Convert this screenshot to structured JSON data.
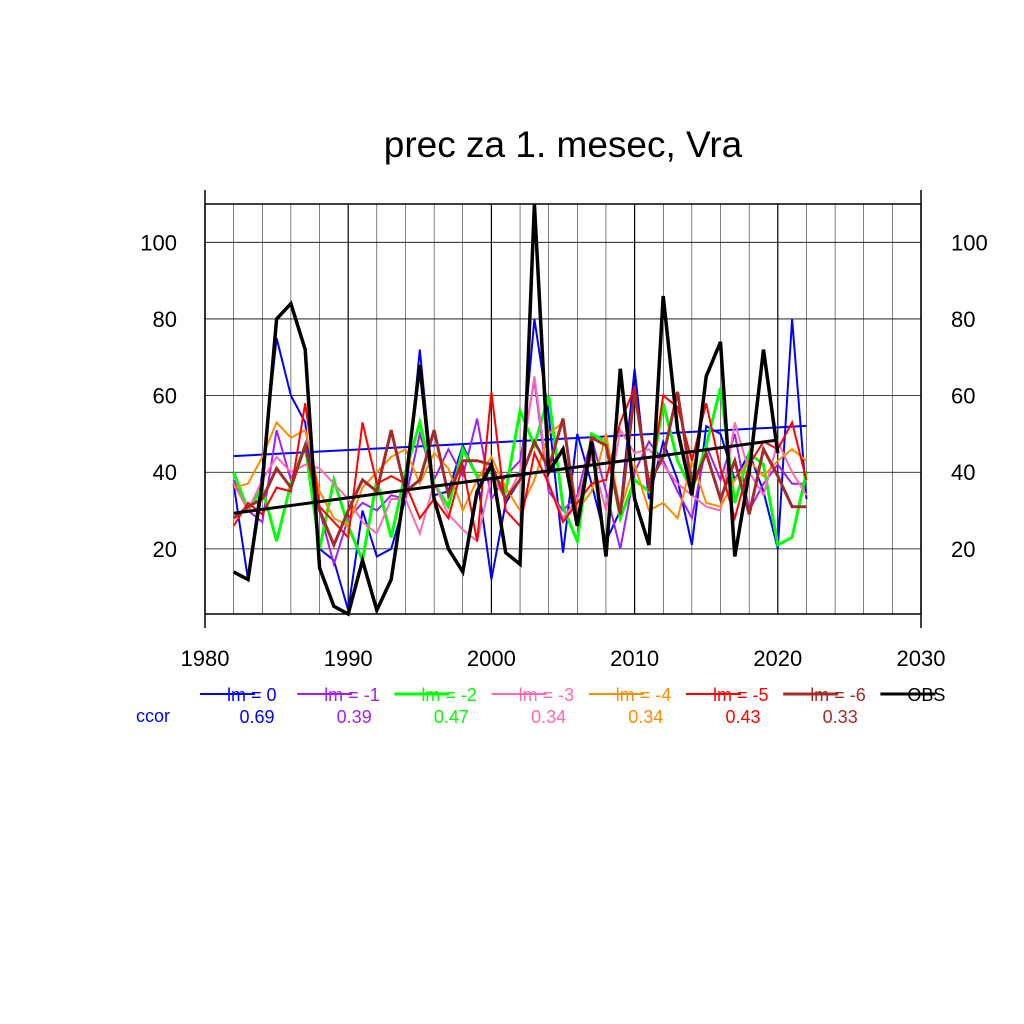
{
  "chart_data": {
    "type": "line",
    "title": "prec za 1. mesec, Vra",
    "xlim": [
      1980,
      2030
    ],
    "ylim": [
      3,
      110
    ],
    "x_ticks": [
      "1980",
      "1990",
      "2000",
      "2010",
      "2020",
      "2030"
    ],
    "y_ticks": [
      "20",
      "40",
      "60",
      "80",
      "100"
    ],
    "y_ticks_right": [
      "20",
      "40",
      "60",
      "80",
      "100"
    ],
    "grid": true,
    "legend_position": "bottom",
    "ccor_label": "ccor",
    "x": [
      1982,
      1983,
      1984,
      1985,
      1986,
      1987,
      1988,
      1989,
      1990,
      1991,
      1992,
      1993,
      1994,
      1995,
      1996,
      1997,
      1998,
      1999,
      2000,
      2001,
      2002,
      2003,
      2004,
      2005,
      2006,
      2007,
      2008,
      2009,
      2010,
      2011,
      2012,
      2013,
      2014,
      2015,
      2016,
      2017,
      2018,
      2019,
      2020,
      2021,
      2022
    ],
    "series": [
      {
        "name": "lm = 0",
        "color": "#0000ff",
        "width": 2,
        "ccor": "0.69",
        "values": [
          37,
          12,
          40,
          75,
          60,
          53,
          20,
          17,
          4,
          30,
          18,
          20,
          33,
          72,
          34,
          35,
          47,
          39,
          12,
          32,
          38,
          80,
          55,
          19,
          50,
          37,
          22,
          30,
          67,
          33,
          48,
          38,
          21,
          52,
          50,
          38,
          45,
          35,
          20,
          80,
          33
        ],
        "trend": [
          [
            1982,
            44.2
          ],
          [
            2022,
            52.1
          ]
        ]
      },
      {
        "name": "lm = -1",
        "color": "#a020f0",
        "width": 2,
        "ccor": "0.39",
        "values": [
          38,
          30,
          27,
          51,
          38,
          47,
          30,
          16,
          28,
          32,
          30,
          34,
          33,
          50,
          38,
          46,
          39,
          54,
          33,
          39,
          43,
          64,
          35,
          30,
          34,
          49,
          35,
          20,
          40,
          48,
          43,
          35,
          28,
          47,
          38,
          50,
          30,
          37,
          42,
          37,
          37
        ]
      },
      {
        "name": "lm = -2",
        "color": "#00ff00",
        "width": 3,
        "ccor": "0.47",
        "values": [
          40,
          30,
          36,
          22,
          37,
          47,
          20,
          38,
          26,
          17,
          38,
          23,
          40,
          53,
          37,
          31,
          46,
          39,
          40,
          35,
          56,
          47,
          60,
          31,
          22,
          50,
          48,
          28,
          38,
          35,
          58,
          43,
          35,
          47,
          62,
          32,
          45,
          42,
          21,
          23,
          40
        ]
      },
      {
        "name": "lm = -3",
        "color": "#ff69b4",
        "width": 2,
        "ccor": "0.34",
        "values": [
          37,
          30,
          38,
          44,
          40,
          42,
          41,
          37,
          33,
          27,
          24,
          33,
          33,
          24,
          37,
          29,
          25,
          22,
          39,
          33,
          40,
          65,
          37,
          28,
          33,
          44,
          30,
          51,
          45,
          46,
          42,
          37,
          34,
          31,
          30,
          53,
          40,
          34,
          48,
          40,
          34
        ]
      },
      {
        "name": "lm = -4",
        "color": "#ff8c00",
        "width": 2,
        "ccor": "0.34",
        "values": [
          36,
          37,
          44,
          53,
          49,
          51,
          35,
          28,
          26,
          36,
          40,
          44,
          46,
          37,
          45,
          41,
          30,
          38,
          44,
          36,
          30,
          38,
          50,
          53,
          30,
          35,
          50,
          30,
          42,
          30,
          32,
          28,
          43,
          32,
          31,
          38,
          43,
          39,
          43,
          46,
          43
        ]
      },
      {
        "name": "lm = -5",
        "color": "#ff0000",
        "width": 2,
        "ccor": "0.43",
        "values": [
          26,
          32,
          29,
          36,
          35,
          58,
          31,
          27,
          23,
          53,
          37,
          39,
          37,
          28,
          33,
          28,
          42,
          22,
          61,
          30,
          26,
          45,
          37,
          27,
          32,
          37,
          38,
          53,
          62,
          35,
          60,
          57,
          43,
          58,
          41,
          28,
          42,
          48,
          46,
          53,
          38
        ]
      },
      {
        "name": "lm = -6",
        "color": "#a52a2a",
        "width": 3,
        "ccor": "0.33",
        "values": [
          28,
          31,
          33,
          41,
          36,
          47,
          30,
          21,
          30,
          38,
          35,
          51,
          35,
          38,
          51,
          34,
          43,
          43,
          42,
          33,
          38,
          48,
          41,
          54,
          27,
          49,
          47,
          29,
          61,
          37,
          44,
          61,
          36,
          45,
          33,
          43,
          29,
          46,
          39,
          31,
          31
        ]
      },
      {
        "name": "OBS",
        "color": "#000000",
        "width": 3.5,
        "ccor": "",
        "values": [
          14,
          12,
          37,
          80,
          84,
          72,
          15,
          5,
          3,
          17,
          4,
          12,
          37,
          68,
          33,
          20,
          14,
          35,
          42,
          19,
          16,
          110,
          40,
          46,
          26,
          48,
          18,
          67,
          33,
          21,
          86,
          51,
          34,
          65,
          74,
          18,
          40,
          72,
          45,
          null,
          null
        ],
        "trend": [
          [
            1982,
            29.3
          ],
          [
            2020,
            48.4
          ]
        ]
      }
    ]
  }
}
